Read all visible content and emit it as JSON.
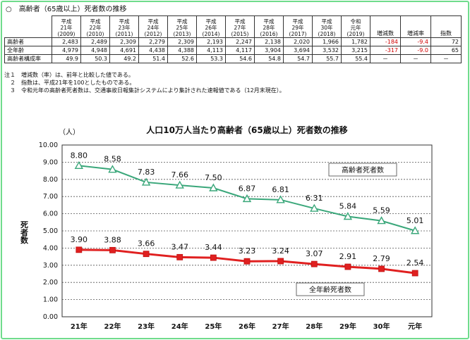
{
  "section_title": "○　高齢者（65歳以上）死者数の推移",
  "table": {
    "years": [
      {
        "era": "平成",
        "nen": "21年",
        "ad": "(2009)"
      },
      {
        "era": "平成",
        "nen": "22年",
        "ad": "(2010)"
      },
      {
        "era": "平成",
        "nen": "23年",
        "ad": "(2011)"
      },
      {
        "era": "平成",
        "nen": "24年",
        "ad": "(2012)"
      },
      {
        "era": "平成",
        "nen": "25年",
        "ad": "(2013)"
      },
      {
        "era": "平成",
        "nen": "26年",
        "ad": "(2014)"
      },
      {
        "era": "平成",
        "nen": "27年",
        "ad": "(2015)"
      },
      {
        "era": "平成",
        "nen": "28年",
        "ad": "(2016)"
      },
      {
        "era": "平成",
        "nen": "29年",
        "ad": "(2017)"
      },
      {
        "era": "平成",
        "nen": "30年",
        "ad": "(2018)"
      },
      {
        "era": "令和",
        "nen": "元年",
        "ad": "(2019)"
      }
    ],
    "extra_headers": [
      "増減数",
      "増減率",
      "指数"
    ],
    "rows": [
      {
        "label": "高齢者",
        "values": [
          "2,483",
          "2,489",
          "2,309",
          "2,279",
          "2,309",
          "2,193",
          "2,247",
          "2,138",
          "2,020",
          "1,966",
          "1,782"
        ],
        "change": "-184",
        "rate": "-9.4",
        "index": "72"
      },
      {
        "label": "全年齢",
        "values": [
          "4,979",
          "4,948",
          "4,691",
          "4,438",
          "4,388",
          "4,113",
          "4,117",
          "3,904",
          "3,694",
          "3,532",
          "3,215"
        ],
        "change": "-317",
        "rate": "-9.0",
        "index": "65"
      },
      {
        "label": "高齢者構成率",
        "values": [
          "49.9",
          "50.3",
          "49.2",
          "51.4",
          "52.6",
          "53.3",
          "54.6",
          "54.8",
          "54.7",
          "55.7",
          "55.4"
        ],
        "change": "－",
        "rate": "－",
        "index": "－"
      }
    ]
  },
  "notes": [
    "注１　増減数（率）は、前年と比較した値である。",
    "　２　指数は、平成21年を100としたものである。",
    "　３　令和元年の高齢者死者数は、交通事故日報集計システムにより集計された速報値である（12月末現在）。"
  ],
  "chart_data": {
    "type": "line",
    "title": "人口10万人当たり高齢者（65歳以上）死者数の推移",
    "unit_label": "（人）",
    "ylabel": "死者数",
    "categories": [
      "21年",
      "22年",
      "23年",
      "24年",
      "25年",
      "26年",
      "27年",
      "28年",
      "29年",
      "30年",
      "元年"
    ],
    "ylim": [
      0,
      10
    ],
    "y_ticks": [
      "0.00",
      "1.00",
      "2.00",
      "3.00",
      "4.00",
      "5.00",
      "6.00",
      "7.00",
      "8.00",
      "9.00",
      "10.00"
    ],
    "grid": true,
    "series": [
      {
        "name": "高齢者死者数",
        "color": "#3aa77a",
        "marker": "triangle",
        "values": [
          8.8,
          8.58,
          7.83,
          7.66,
          7.5,
          6.87,
          6.81,
          6.31,
          5.84,
          5.59,
          5.01
        ],
        "labels": [
          "8.80",
          "8.58",
          "7.83",
          "7.66",
          "7.50",
          "6.87",
          "6.81",
          "6.31",
          "5.84",
          "5.59",
          "5.01"
        ]
      },
      {
        "name": "全年齢死者数",
        "color": "#e02020",
        "marker": "square",
        "values": [
          3.9,
          3.88,
          3.66,
          3.47,
          3.44,
          3.23,
          3.24,
          3.07,
          2.91,
          2.79,
          2.54
        ],
        "labels": [
          "3.90",
          "3.88",
          "3.66",
          "3.47",
          "3.44",
          "3.23",
          "3.24",
          "3.07",
          "2.91",
          "2.79",
          "2.54"
        ]
      }
    ]
  }
}
